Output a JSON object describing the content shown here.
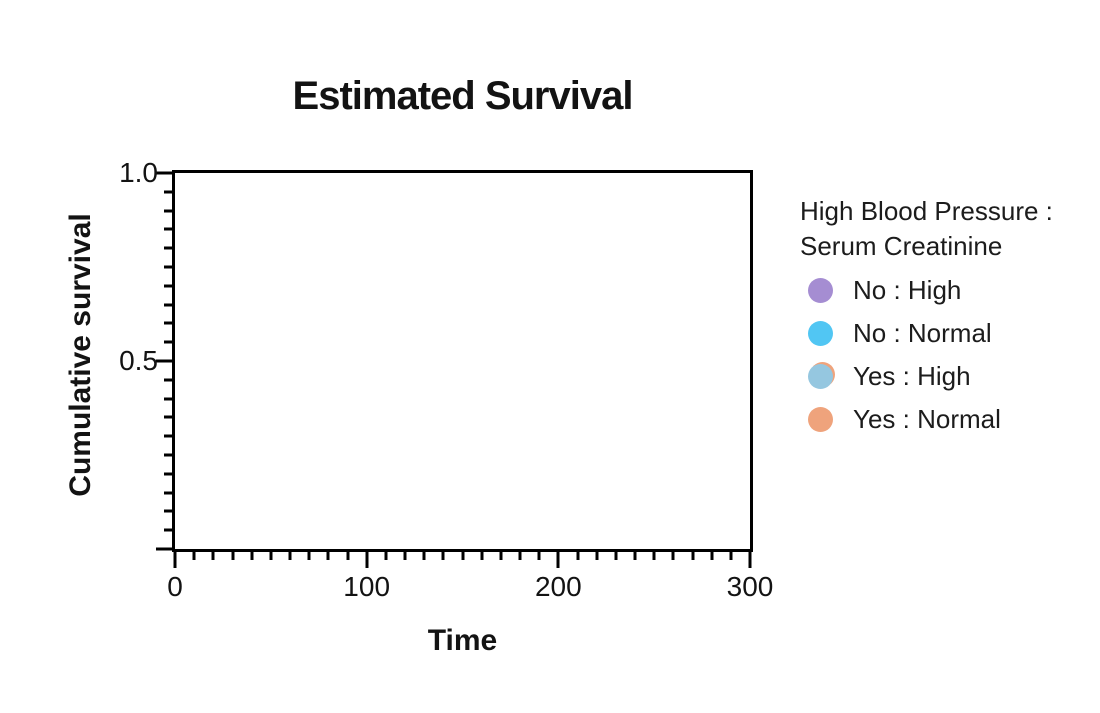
{
  "chart_data": {
    "type": "line",
    "title": "Estimated Survival",
    "xlabel": "Time",
    "ylabel": "Cumulative survival",
    "xlim": [
      0,
      300
    ],
    "ylim": [
      0,
      1
    ],
    "x_major_ticks": [
      0,
      100,
      200,
      300
    ],
    "x_major_labels": [
      "0",
      "100",
      "200",
      "300"
    ],
    "x_minor_step": 10,
    "y_major_ticks": [
      1,
      0.5,
      0
    ],
    "y_major_labels": [
      "1.0",
      "0.5",
      ""
    ],
    "y_minor_step": 0.05,
    "grid": false,
    "plot_background": "#ffffff",
    "axis_color": "#000000",
    "text_color": "#131313",
    "legend_position": "right",
    "legend_title_lines": [
      "High Blood Pressure :",
      "Serum Creatinine"
    ],
    "series": [
      {
        "name": "No : High",
        "color": "#a58dd2",
        "x": [],
        "y": []
      },
      {
        "name": "No : Normal",
        "color": "#51c6f3",
        "x": [],
        "y": []
      },
      {
        "name": "Yes : High",
        "color": "#95c7e0",
        "halo": "#efa37c",
        "x": [],
        "y": []
      },
      {
        "name": "Yes : Normal",
        "color": "#efa37c",
        "x": [],
        "y": []
      }
    ]
  }
}
